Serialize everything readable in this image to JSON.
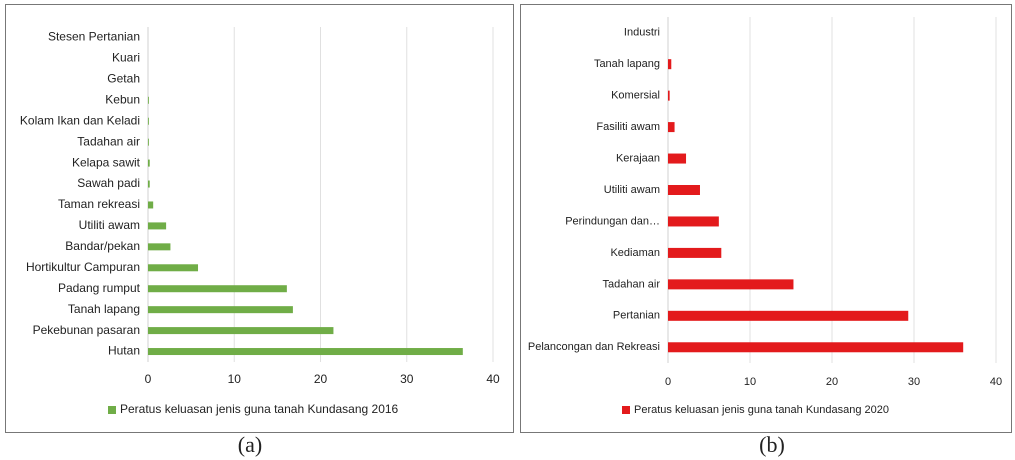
{
  "chart_data": [
    {
      "type": "barh",
      "categories": [
        "Stesen Pertanian",
        "Kuari",
        "Getah",
        "Kebun",
        "Kolam Ikan dan Keladi",
        "Tadahan air",
        "Kelapa sawit",
        "Sawah padi",
        "Taman rekreasi",
        "Utiliti awam",
        "Bandar/pekan",
        "Hortikultur Campuran",
        "Padang rumput",
        "Tanah lapang",
        "Pekebunan pasaran",
        "Hutan"
      ],
      "series": [
        {
          "name": "Peratus keluasan jenis guna tanah Kundasang 2016",
          "color": "#70ad47",
          "values": [
            0,
            0,
            0,
            0.1,
            0.1,
            0.1,
            0.2,
            0.2,
            0.6,
            2.1,
            2.6,
            5.8,
            16.1,
            16.8,
            21.5,
            36.5
          ]
        }
      ],
      "xlim": [
        0,
        40
      ],
      "xticks": [
        0,
        10,
        20,
        30,
        40
      ],
      "grid": true,
      "legend": "bottom"
    },
    {
      "type": "barh",
      "categories": [
        "Industri",
        "Tanah lapang",
        "Komersial",
        "Fasiliti awam",
        "Kerajaan",
        "Utiliti awam",
        "Perindungan dan…",
        "Kediaman",
        "Tadahan air",
        "Pertanian",
        "Pelancongan dan Rekreasi"
      ],
      "series": [
        {
          "name": "Peratus keluasan jenis guna tanah Kundasang 2020",
          "color": "#e31a1c",
          "values": [
            0,
            0.4,
            0.2,
            0.8,
            2.2,
            3.9,
            6.2,
            6.5,
            15.3,
            29.3,
            36.0
          ]
        }
      ],
      "xlim": [
        0,
        40
      ],
      "xticks": [
        0,
        10,
        20,
        30,
        40
      ],
      "grid": true,
      "legend": "bottom"
    }
  ],
  "captions": [
    "(a)",
    "(b)"
  ]
}
